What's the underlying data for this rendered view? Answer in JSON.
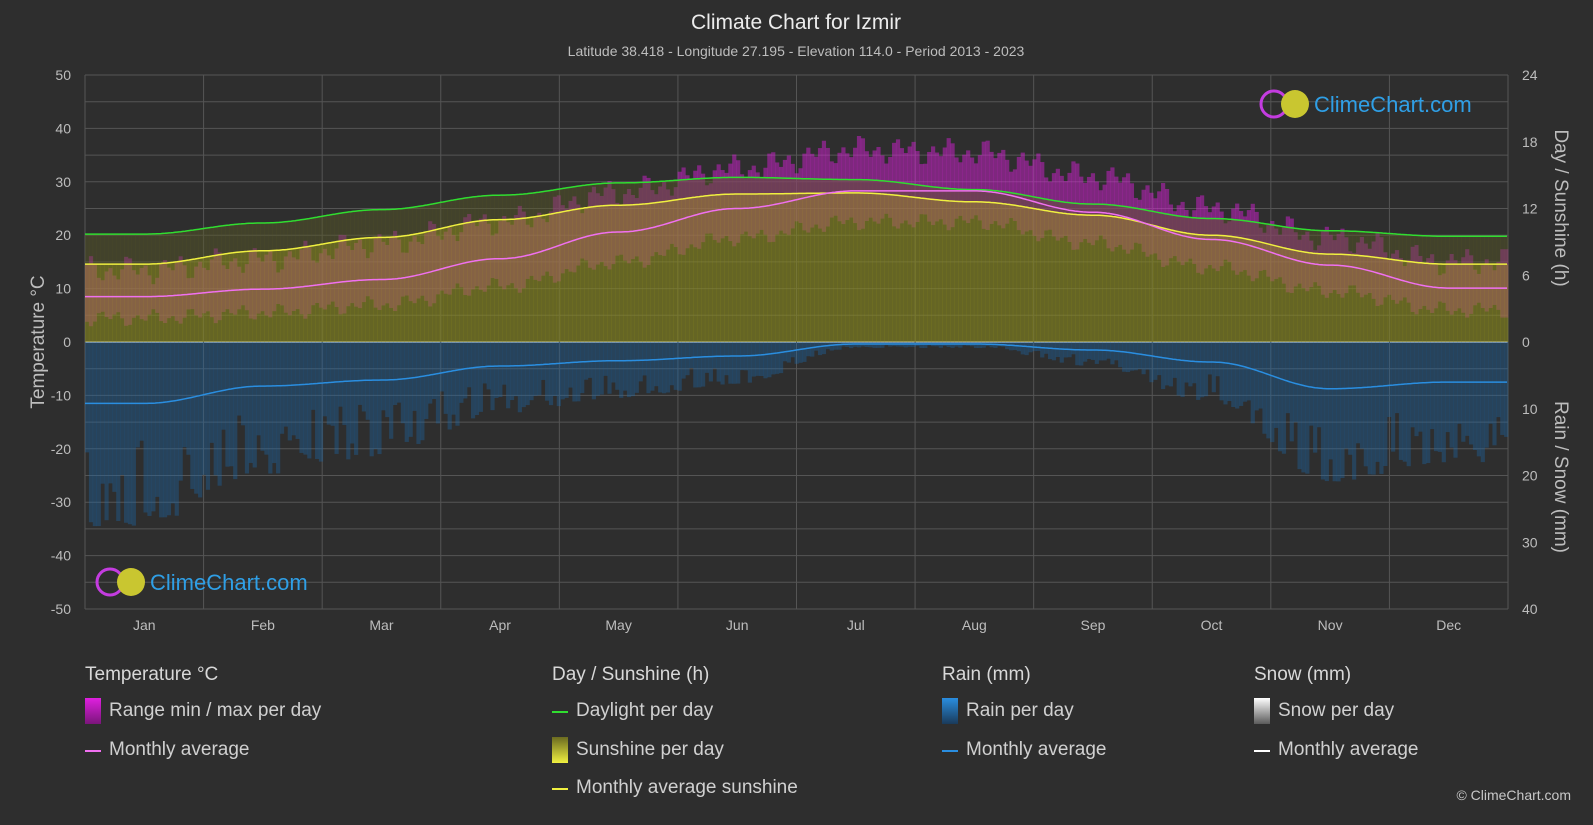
{
  "header": {
    "title": "Climate Chart for Izmir",
    "subtitle": "Latitude 38.418 - Longitude 27.195 - Elevation 114.0 - Period 2013 - 2023"
  },
  "brand": {
    "logo_text": "ClimeChart.com",
    "copyright": "© ClimeChart.com"
  },
  "legend": {
    "temperature": {
      "heading": "Temperature °C",
      "range": "Range min / max per day",
      "avg": "Monthly average"
    },
    "sunshine": {
      "heading": "Day / Sunshine (h)",
      "daylight": "Daylight per day",
      "sunshine": "Sunshine per day",
      "avg": "Monthly average sunshine"
    },
    "rain": {
      "heading": "Rain (mm)",
      "per_day": "Rain per day",
      "avg": "Monthly average"
    },
    "snow": {
      "heading": "Snow (mm)",
      "per_day": "Snow per day",
      "avg": "Monthly average"
    }
  },
  "colors": {
    "background": "#2e2e2e",
    "temp_range": "#e020e0",
    "temp_avg": "#f070f0",
    "daylight": "#30dd30",
    "sunshine_fill": "#8a8a1e",
    "sunshine_avg": "#f0f040",
    "rain": "#1a6ab0",
    "rain_avg": "#2a8ee0",
    "snow": "#ffffff"
  },
  "chart_data": {
    "type": "area",
    "title": "Climate Chart for Izmir",
    "categories": [
      "Jan",
      "Feb",
      "Mar",
      "Apr",
      "May",
      "Jun",
      "Jul",
      "Aug",
      "Sep",
      "Oct",
      "Nov",
      "Dec"
    ],
    "y_left": {
      "label": "Temperature °C",
      "range": [
        -50,
        50
      ],
      "ticks": [
        "50",
        "40",
        "30",
        "20",
        "10",
        "0",
        "-10",
        "-20",
        "-30",
        "-40",
        "-50"
      ]
    },
    "y_right_top": {
      "label": "Day / Sunshine (h)",
      "range": [
        0,
        24
      ],
      "ticks": [
        "24",
        "18",
        "12",
        "6",
        "0"
      ]
    },
    "y_right_bottom": {
      "label": "Rain / Snow (mm)",
      "range": [
        0,
        40
      ],
      "ticks": [
        "0",
        "10",
        "20",
        "30",
        "40"
      ]
    },
    "grid": true,
    "series": [
      {
        "name": "Monthly average",
        "group": "temperature",
        "unit": "°C",
        "values": [
          8.5,
          9.9,
          11.7,
          15.6,
          20.6,
          25.0,
          28.3,
          28.3,
          24.3,
          19.2,
          14.4,
          10.1
        ]
      },
      {
        "name": "Range min / max per day",
        "group": "temperature",
        "unit": "°C",
        "min": [
          4.5,
          5.5,
          7.0,
          10.5,
          15.0,
          19.5,
          22.5,
          22.5,
          18.5,
          14.0,
          9.5,
          6.0
        ],
        "max": [
          13.5,
          15.5,
          18.5,
          22.5,
          28.0,
          32.5,
          36.0,
          35.5,
          31.0,
          25.0,
          19.5,
          15.0
        ]
      },
      {
        "name": "Daylight per day",
        "group": "sunshine",
        "unit": "h",
        "values": [
          9.7,
          10.7,
          11.9,
          13.2,
          14.3,
          14.8,
          14.6,
          13.7,
          12.4,
          11.1,
          10.0,
          9.5
        ]
      },
      {
        "name": "Sunshine per day",
        "group": "sunshine",
        "unit": "h",
        "values": [
          7.0,
          8.2,
          9.4,
          11.0,
          12.3,
          13.3,
          13.4,
          12.6,
          11.4,
          9.6,
          7.9,
          7.0
        ]
      },
      {
        "name": "Monthly average sunshine",
        "group": "sunshine",
        "unit": "h",
        "values": [
          7.0,
          8.2,
          9.4,
          11.0,
          12.3,
          13.3,
          13.4,
          12.6,
          11.4,
          9.6,
          7.9,
          7.0
        ]
      },
      {
        "name": "Monthly average",
        "group": "rain",
        "unit": "mm",
        "values": [
          9.2,
          6.6,
          5.7,
          3.6,
          2.8,
          2.1,
          0.3,
          0.3,
          1.2,
          3.0,
          7.0,
          6.0
        ]
      }
    ]
  }
}
